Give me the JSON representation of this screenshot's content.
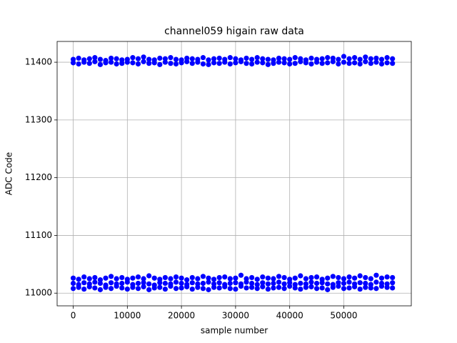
{
  "chart_data": {
    "type": "scatter",
    "title": "channel059 higain raw data",
    "xlabel": "sample number",
    "ylabel": "ADC Code",
    "x": [
      0,
      1000,
      2000,
      3000,
      4000,
      5000,
      6000,
      7000,
      8000,
      9000,
      10000,
      11000,
      12000,
      13000,
      14000,
      15000,
      16000,
      17000,
      18000,
      19000,
      20000,
      21000,
      22000,
      23000,
      24000,
      25000,
      26000,
      27000,
      28000,
      29000,
      30000,
      31000,
      32000,
      33000,
      34000,
      35000,
      36000,
      37000,
      38000,
      39000,
      40000,
      41000,
      42000,
      43000,
      44000,
      45000,
      46000,
      47000,
      48000,
      49000,
      50000,
      51000,
      52000,
      53000,
      54000,
      55000,
      56000,
      57000,
      58000,
      59000
    ],
    "series": [
      {
        "color": "#0000ff",
        "values": [
          11008,
          11010,
          11007,
          11011,
          11009,
          11006,
          11010,
          11008,
          11012,
          11009,
          11007,
          11010,
          11008,
          11011,
          11006,
          11009,
          11010,
          11007,
          11012,
          11008,
          11009,
          11011,
          11007,
          11010,
          11008,
          11006,
          11010,
          11009,
          11011,
          11008,
          11007,
          11012,
          11009,
          11010,
          11008,
          11011,
          11007,
          11009,
          11010,
          11008,
          11012,
          11009,
          11007,
          11010,
          11011,
          11008,
          11009,
          11006,
          11010,
          11012,
          11008,
          11009,
          11011,
          11007,
          11010,
          11009,
          11008,
          11012,
          11010,
          11009
        ]
      },
      {
        "color": "#0000ff",
        "values": [
          11017,
          11015,
          11018,
          11016,
          11019,
          11017,
          11014,
          11018,
          11016,
          11017,
          11019,
          11015,
          11017,
          11018,
          11016,
          11014,
          11018,
          11017,
          11016,
          11019,
          11017,
          11015,
          11018,
          11016,
          11017,
          11019,
          11016,
          11018,
          11015,
          11017,
          11018,
          11016,
          11019,
          11017,
          11015,
          11018,
          11016,
          11017,
          11019,
          11016,
          11018,
          11015,
          11017,
          11016,
          11019,
          11017,
          11018,
          11016,
          11015,
          11018,
          11017,
          11019,
          11016,
          11018,
          11017,
          11015,
          11019,
          11017,
          11016,
          11018
        ]
      },
      {
        "color": "#0000ff",
        "values": [
          11026,
          11024,
          11028,
          11025,
          11027,
          11023,
          11026,
          11029,
          11025,
          11027,
          11024,
          11026,
          11028,
          11025,
          11030,
          11026,
          11024,
          11027,
          11025,
          11028,
          11026,
          11023,
          11027,
          11025,
          11029,
          11026,
          11024,
          11027,
          11028,
          11025,
          11026,
          11031,
          11025,
          11027,
          11024,
          11028,
          11026,
          11025,
          11029,
          11027,
          11024,
          11026,
          11030,
          11025,
          11027,
          11028,
          11024,
          11026,
          11029,
          11027,
          11025,
          11028,
          11026,
          11030,
          11027,
          11025,
          11031,
          11026,
          11028,
          11027
        ]
      },
      {
        "color": "#0000ff",
        "values": [
          11399,
          11397,
          11400,
          11398,
          11401,
          11396,
          11399,
          11400,
          11397,
          11398,
          11400,
          11399,
          11397,
          11401,
          11398,
          11399,
          11396,
          11400,
          11398,
          11397,
          11399,
          11401,
          11398,
          11400,
          11397,
          11396,
          11399,
          11398,
          11400,
          11397,
          11399,
          11401,
          11398,
          11397,
          11400,
          11399,
          11396,
          11398,
          11400,
          11399,
          11397,
          11398,
          11401,
          11399,
          11397,
          11400,
          11398,
          11399,
          11401,
          11397,
          11400,
          11398,
          11399,
          11397,
          11401,
          11398,
          11400,
          11397,
          11399,
          11398
        ]
      },
      {
        "color": "#0000ff",
        "values": [
          11405,
          11407,
          11404,
          11406,
          11408,
          11405,
          11403,
          11407,
          11406,
          11404,
          11405,
          11408,
          11406,
          11409,
          11405,
          11404,
          11407,
          11406,
          11408,
          11405,
          11404,
          11407,
          11406,
          11405,
          11408,
          11404,
          11406,
          11407,
          11405,
          11408,
          11406,
          11404,
          11407,
          11405,
          11408,
          11406,
          11405,
          11404,
          11407,
          11406,
          11405,
          11408,
          11406,
          11404,
          11407,
          11405,
          11406,
          11408,
          11407,
          11405,
          11410,
          11406,
          11408,
          11405,
          11409,
          11406,
          11407,
          11405,
          11408,
          11406
        ]
      }
    ],
    "xlim": [
      -2975,
      62475
    ],
    "ylim": [
      10978,
      11436
    ],
    "xticks": [
      0,
      10000,
      20000,
      30000,
      40000,
      50000
    ],
    "yticks": [
      11000,
      11100,
      11200,
      11300,
      11400
    ],
    "grid": true
  }
}
